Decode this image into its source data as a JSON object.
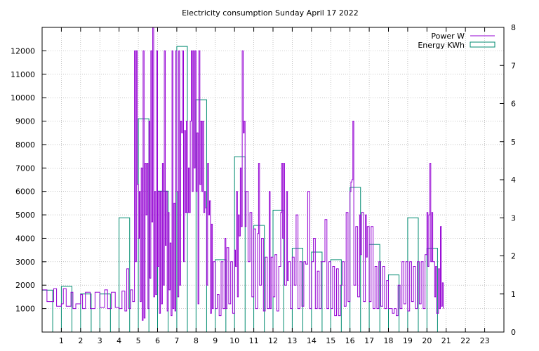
{
  "chart_data": {
    "type": "line",
    "title": "Electricity consumption Sunday April 17 2022",
    "x": {
      "ticks": [
        1,
        2,
        3,
        4,
        5,
        6,
        7,
        8,
        9,
        10,
        11,
        12,
        13,
        14,
        15,
        16,
        17,
        18,
        19,
        20,
        21,
        22,
        23
      ],
      "range": [
        0,
        24
      ]
    },
    "y_left": {
      "ticks": [
        1000,
        2000,
        3000,
        4000,
        5000,
        6000,
        7000,
        8000,
        9000,
        10000,
        11000,
        12000
      ],
      "range": [
        0,
        13000
      ]
    },
    "y_right": {
      "ticks": [
        0,
        1,
        2,
        3,
        4,
        5,
        6,
        7,
        8
      ],
      "range": [
        0,
        8
      ]
    },
    "grid": true,
    "legend_position": "top-right",
    "series": [
      {
        "name": "Power W",
        "axis": "left",
        "color": "#9400d3",
        "points": [
          [
            0.0,
            1800
          ],
          [
            0.25,
            1300
          ],
          [
            0.5,
            1300
          ],
          [
            0.6,
            1850
          ],
          [
            0.75,
            1100
          ],
          [
            1.0,
            1200
          ],
          [
            1.1,
            1850
          ],
          [
            1.25,
            1100
          ],
          [
            1.5,
            1700
          ],
          [
            1.6,
            1000
          ],
          [
            1.75,
            1200
          ],
          [
            2.0,
            1600
          ],
          [
            2.1,
            1000
          ],
          [
            2.25,
            1700
          ],
          [
            2.5,
            1000
          ],
          [
            2.75,
            1700
          ],
          [
            3.0,
            1050
          ],
          [
            3.25,
            1800
          ],
          [
            3.4,
            1000
          ],
          [
            3.6,
            1700
          ],
          [
            3.8,
            1050
          ],
          [
            4.0,
            1000
          ],
          [
            4.15,
            1750
          ],
          [
            4.3,
            900
          ],
          [
            4.4,
            2700
          ],
          [
            4.5,
            1000
          ],
          [
            4.6,
            1800
          ],
          [
            4.7,
            1300
          ],
          [
            4.8,
            12000
          ],
          [
            4.85,
            3000
          ],
          [
            4.9,
            12000
          ],
          [
            4.95,
            6300
          ],
          [
            5.0,
            4000
          ],
          [
            5.05,
            6000
          ],
          [
            5.1,
            1300
          ],
          [
            5.15,
            7000
          ],
          [
            5.2,
            500
          ],
          [
            5.25,
            12000
          ],
          [
            5.3,
            600
          ],
          [
            5.35,
            7200
          ],
          [
            5.4,
            5000
          ],
          [
            5.45,
            7200
          ],
          [
            5.5,
            1000
          ],
          [
            5.55,
            9000
          ],
          [
            5.6,
            2300
          ],
          [
            5.65,
            12000
          ],
          [
            5.7,
            4700
          ],
          [
            5.75,
            13000
          ],
          [
            5.8,
            1500
          ],
          [
            5.85,
            6000
          ],
          [
            5.9,
            1600
          ],
          [
            5.95,
            12000
          ],
          [
            6.0,
            2800
          ],
          [
            6.05,
            6000
          ],
          [
            6.1,
            800
          ],
          [
            6.15,
            6000
          ],
          [
            6.2,
            1200
          ],
          [
            6.25,
            7200
          ],
          [
            6.3,
            2000
          ],
          [
            6.35,
            12000
          ],
          [
            6.4,
            3700
          ],
          [
            6.45,
            6000
          ],
          [
            6.5,
            900
          ],
          [
            6.55,
            5100
          ],
          [
            6.6,
            1800
          ],
          [
            6.65,
            3800
          ],
          [
            6.7,
            700
          ],
          [
            6.75,
            12000
          ],
          [
            6.8,
            1000
          ],
          [
            6.85,
            5500
          ],
          [
            6.9,
            900
          ],
          [
            6.95,
            12000
          ],
          [
            7.0,
            6000
          ],
          [
            7.05,
            1500
          ],
          [
            7.1,
            12000
          ],
          [
            7.15,
            2000
          ],
          [
            7.2,
            9000
          ],
          [
            7.25,
            8500
          ],
          [
            7.3,
            12000
          ],
          [
            7.35,
            3000
          ],
          [
            7.4,
            8600
          ],
          [
            7.45,
            5100
          ],
          [
            7.5,
            9000
          ],
          [
            7.55,
            5100
          ],
          [
            7.6,
            7000
          ],
          [
            7.65,
            5100
          ],
          [
            7.7,
            9000
          ],
          [
            7.75,
            12000
          ],
          [
            7.8,
            6000
          ],
          [
            7.85,
            12000
          ],
          [
            7.9,
            7000
          ],
          [
            7.95,
            12000
          ],
          [
            8.0,
            6000
          ],
          [
            8.05,
            8500
          ],
          [
            8.1,
            1200
          ],
          [
            8.15,
            12000
          ],
          [
            8.2,
            6300
          ],
          [
            8.25,
            9000
          ],
          [
            8.3,
            6000
          ],
          [
            8.35,
            9000
          ],
          [
            8.4,
            5100
          ],
          [
            8.45,
            6000
          ],
          [
            8.5,
            5300
          ],
          [
            8.55,
            2000
          ],
          [
            8.6,
            7200
          ],
          [
            8.65,
            5000
          ],
          [
            8.7,
            5600
          ],
          [
            8.75,
            800
          ],
          [
            8.8,
            4600
          ],
          [
            8.85,
            1000
          ],
          [
            8.9,
            3000
          ],
          [
            9.0,
            1000
          ],
          [
            9.1,
            1600
          ],
          [
            9.2,
            700
          ],
          [
            9.3,
            3000
          ],
          [
            9.4,
            1000
          ],
          [
            9.5,
            4000
          ],
          [
            9.55,
            1000
          ],
          [
            9.6,
            3600
          ],
          [
            9.7,
            1200
          ],
          [
            9.8,
            3000
          ],
          [
            9.9,
            800
          ],
          [
            10.0,
            3500
          ],
          [
            10.05,
            2800
          ],
          [
            10.1,
            6000
          ],
          [
            10.15,
            1500
          ],
          [
            10.2,
            5000
          ],
          [
            10.25,
            4100
          ],
          [
            10.3,
            7000
          ],
          [
            10.35,
            4500
          ],
          [
            10.4,
            12000
          ],
          [
            10.45,
            8500
          ],
          [
            10.5,
            9000
          ],
          [
            10.55,
            4500
          ],
          [
            10.6,
            6000
          ],
          [
            10.7,
            3000
          ],
          [
            10.8,
            5100
          ],
          [
            10.9,
            1500
          ],
          [
            11.0,
            4400
          ],
          [
            11.1,
            1000
          ],
          [
            11.2,
            4200
          ],
          [
            11.25,
            7200
          ],
          [
            11.3,
            2000
          ],
          [
            11.4,
            4000
          ],
          [
            11.5,
            900
          ],
          [
            11.6,
            3200
          ],
          [
            11.7,
            1000
          ],
          [
            11.8,
            6000
          ],
          [
            11.85,
            1000
          ],
          [
            11.9,
            3200
          ],
          [
            12.0,
            1500
          ],
          [
            12.1,
            3300
          ],
          [
            12.2,
            900
          ],
          [
            12.3,
            2800
          ],
          [
            12.4,
            5100
          ],
          [
            12.45,
            7200
          ],
          [
            12.5,
            4000
          ],
          [
            12.55,
            7200
          ],
          [
            12.6,
            2000
          ],
          [
            12.7,
            6000
          ],
          [
            12.75,
            2200
          ],
          [
            12.8,
            3000
          ],
          [
            12.9,
            1000
          ],
          [
            13.0,
            3200
          ],
          [
            13.1,
            2000
          ],
          [
            13.2,
            5000
          ],
          [
            13.3,
            1000
          ],
          [
            13.4,
            3000
          ],
          [
            13.5,
            1100
          ],
          [
            13.6,
            3000
          ],
          [
            13.7,
            2900
          ],
          [
            13.8,
            6000
          ],
          [
            13.9,
            1000
          ],
          [
            14.0,
            3000
          ],
          [
            14.1,
            4000
          ],
          [
            14.2,
            1000
          ],
          [
            14.3,
            2600
          ],
          [
            14.4,
            1000
          ],
          [
            14.5,
            3000
          ],
          [
            14.6,
            3000
          ],
          [
            14.7,
            4800
          ],
          [
            14.8,
            1000
          ],
          [
            14.9,
            3000
          ],
          [
            15.0,
            1000
          ],
          [
            15.1,
            2800
          ],
          [
            15.2,
            700
          ],
          [
            15.3,
            2700
          ],
          [
            15.4,
            700
          ],
          [
            15.5,
            2000
          ],
          [
            15.6,
            3000
          ],
          [
            15.7,
            1100
          ],
          [
            15.8,
            5100
          ],
          [
            15.9,
            1300
          ],
          [
            16.0,
            6000
          ],
          [
            16.05,
            6400
          ],
          [
            16.1,
            6500
          ],
          [
            16.15,
            9000
          ],
          [
            16.2,
            2000
          ],
          [
            16.3,
            4500
          ],
          [
            16.4,
            1500
          ],
          [
            16.5,
            5000
          ],
          [
            16.55,
            3300
          ],
          [
            16.6,
            5100
          ],
          [
            16.7,
            1300
          ],
          [
            16.8,
            5000
          ],
          [
            16.85,
            3200
          ],
          [
            16.9,
            4500
          ],
          [
            17.0,
            1300
          ],
          [
            17.1,
            4500
          ],
          [
            17.2,
            1000
          ],
          [
            17.3,
            2800
          ],
          [
            17.4,
            1000
          ],
          [
            17.5,
            3000
          ],
          [
            17.6,
            1100
          ],
          [
            17.7,
            2800
          ],
          [
            17.8,
            1000
          ],
          [
            17.9,
            2200
          ],
          [
            18.0,
            1000
          ],
          [
            18.1,
            1000
          ],
          [
            18.2,
            800
          ],
          [
            18.3,
            1000
          ],
          [
            18.4,
            700
          ],
          [
            18.5,
            2000
          ],
          [
            18.6,
            1000
          ],
          [
            18.7,
            3000
          ],
          [
            18.8,
            1200
          ],
          [
            18.9,
            3000
          ],
          [
            19.0,
            900
          ],
          [
            19.1,
            3000
          ],
          [
            19.2,
            1300
          ],
          [
            19.3,
            2800
          ],
          [
            19.4,
            1000
          ],
          [
            19.5,
            3000
          ],
          [
            19.6,
            1200
          ],
          [
            19.7,
            3000
          ],
          [
            19.8,
            1000
          ],
          [
            19.9,
            3300
          ],
          [
            20.0,
            5100
          ],
          [
            20.05,
            2800
          ],
          [
            20.1,
            5000
          ],
          [
            20.15,
            7200
          ],
          [
            20.2,
            3000
          ],
          [
            20.25,
            5100
          ],
          [
            20.3,
            3000
          ],
          [
            20.4,
            1500
          ],
          [
            20.45,
            2800
          ],
          [
            20.5,
            800
          ],
          [
            20.6,
            2700
          ],
          [
            20.65,
            1000
          ],
          [
            20.7,
            4500
          ],
          [
            20.75,
            1100
          ],
          [
            20.8,
            2100
          ],
          [
            20.85,
            1000
          ]
        ]
      },
      {
        "name": "Energy KWh",
        "axis": "right",
        "color": "#008b70",
        "bars": [
          {
            "hour": 0,
            "kwh": 1.1
          },
          {
            "hour": 1,
            "kwh": 1.2
          },
          {
            "hour": 2,
            "kwh": 1.0
          },
          {
            "hour": 3,
            "kwh": 1.0
          },
          {
            "hour": 4,
            "kwh": 3.0
          },
          {
            "hour": 5,
            "kwh": 5.6
          },
          {
            "hour": 6,
            "kwh": 3.7
          },
          {
            "hour": 7,
            "kwh": 7.5
          },
          {
            "hour": 8,
            "kwh": 6.1
          },
          {
            "hour": 9,
            "kwh": 1.9
          },
          {
            "hour": 10,
            "kwh": 4.6
          },
          {
            "hour": 11,
            "kwh": 2.8
          },
          {
            "hour": 12,
            "kwh": 3.2
          },
          {
            "hour": 13,
            "kwh": 2.2
          },
          {
            "hour": 14,
            "kwh": 2.1
          },
          {
            "hour": 15,
            "kwh": 1.9
          },
          {
            "hour": 16,
            "kwh": 3.8
          },
          {
            "hour": 17,
            "kwh": 2.3
          },
          {
            "hour": 18,
            "kwh": 1.5
          },
          {
            "hour": 19,
            "kwh": 3.0
          },
          {
            "hour": 20,
            "kwh": 2.2
          }
        ]
      }
    ]
  }
}
